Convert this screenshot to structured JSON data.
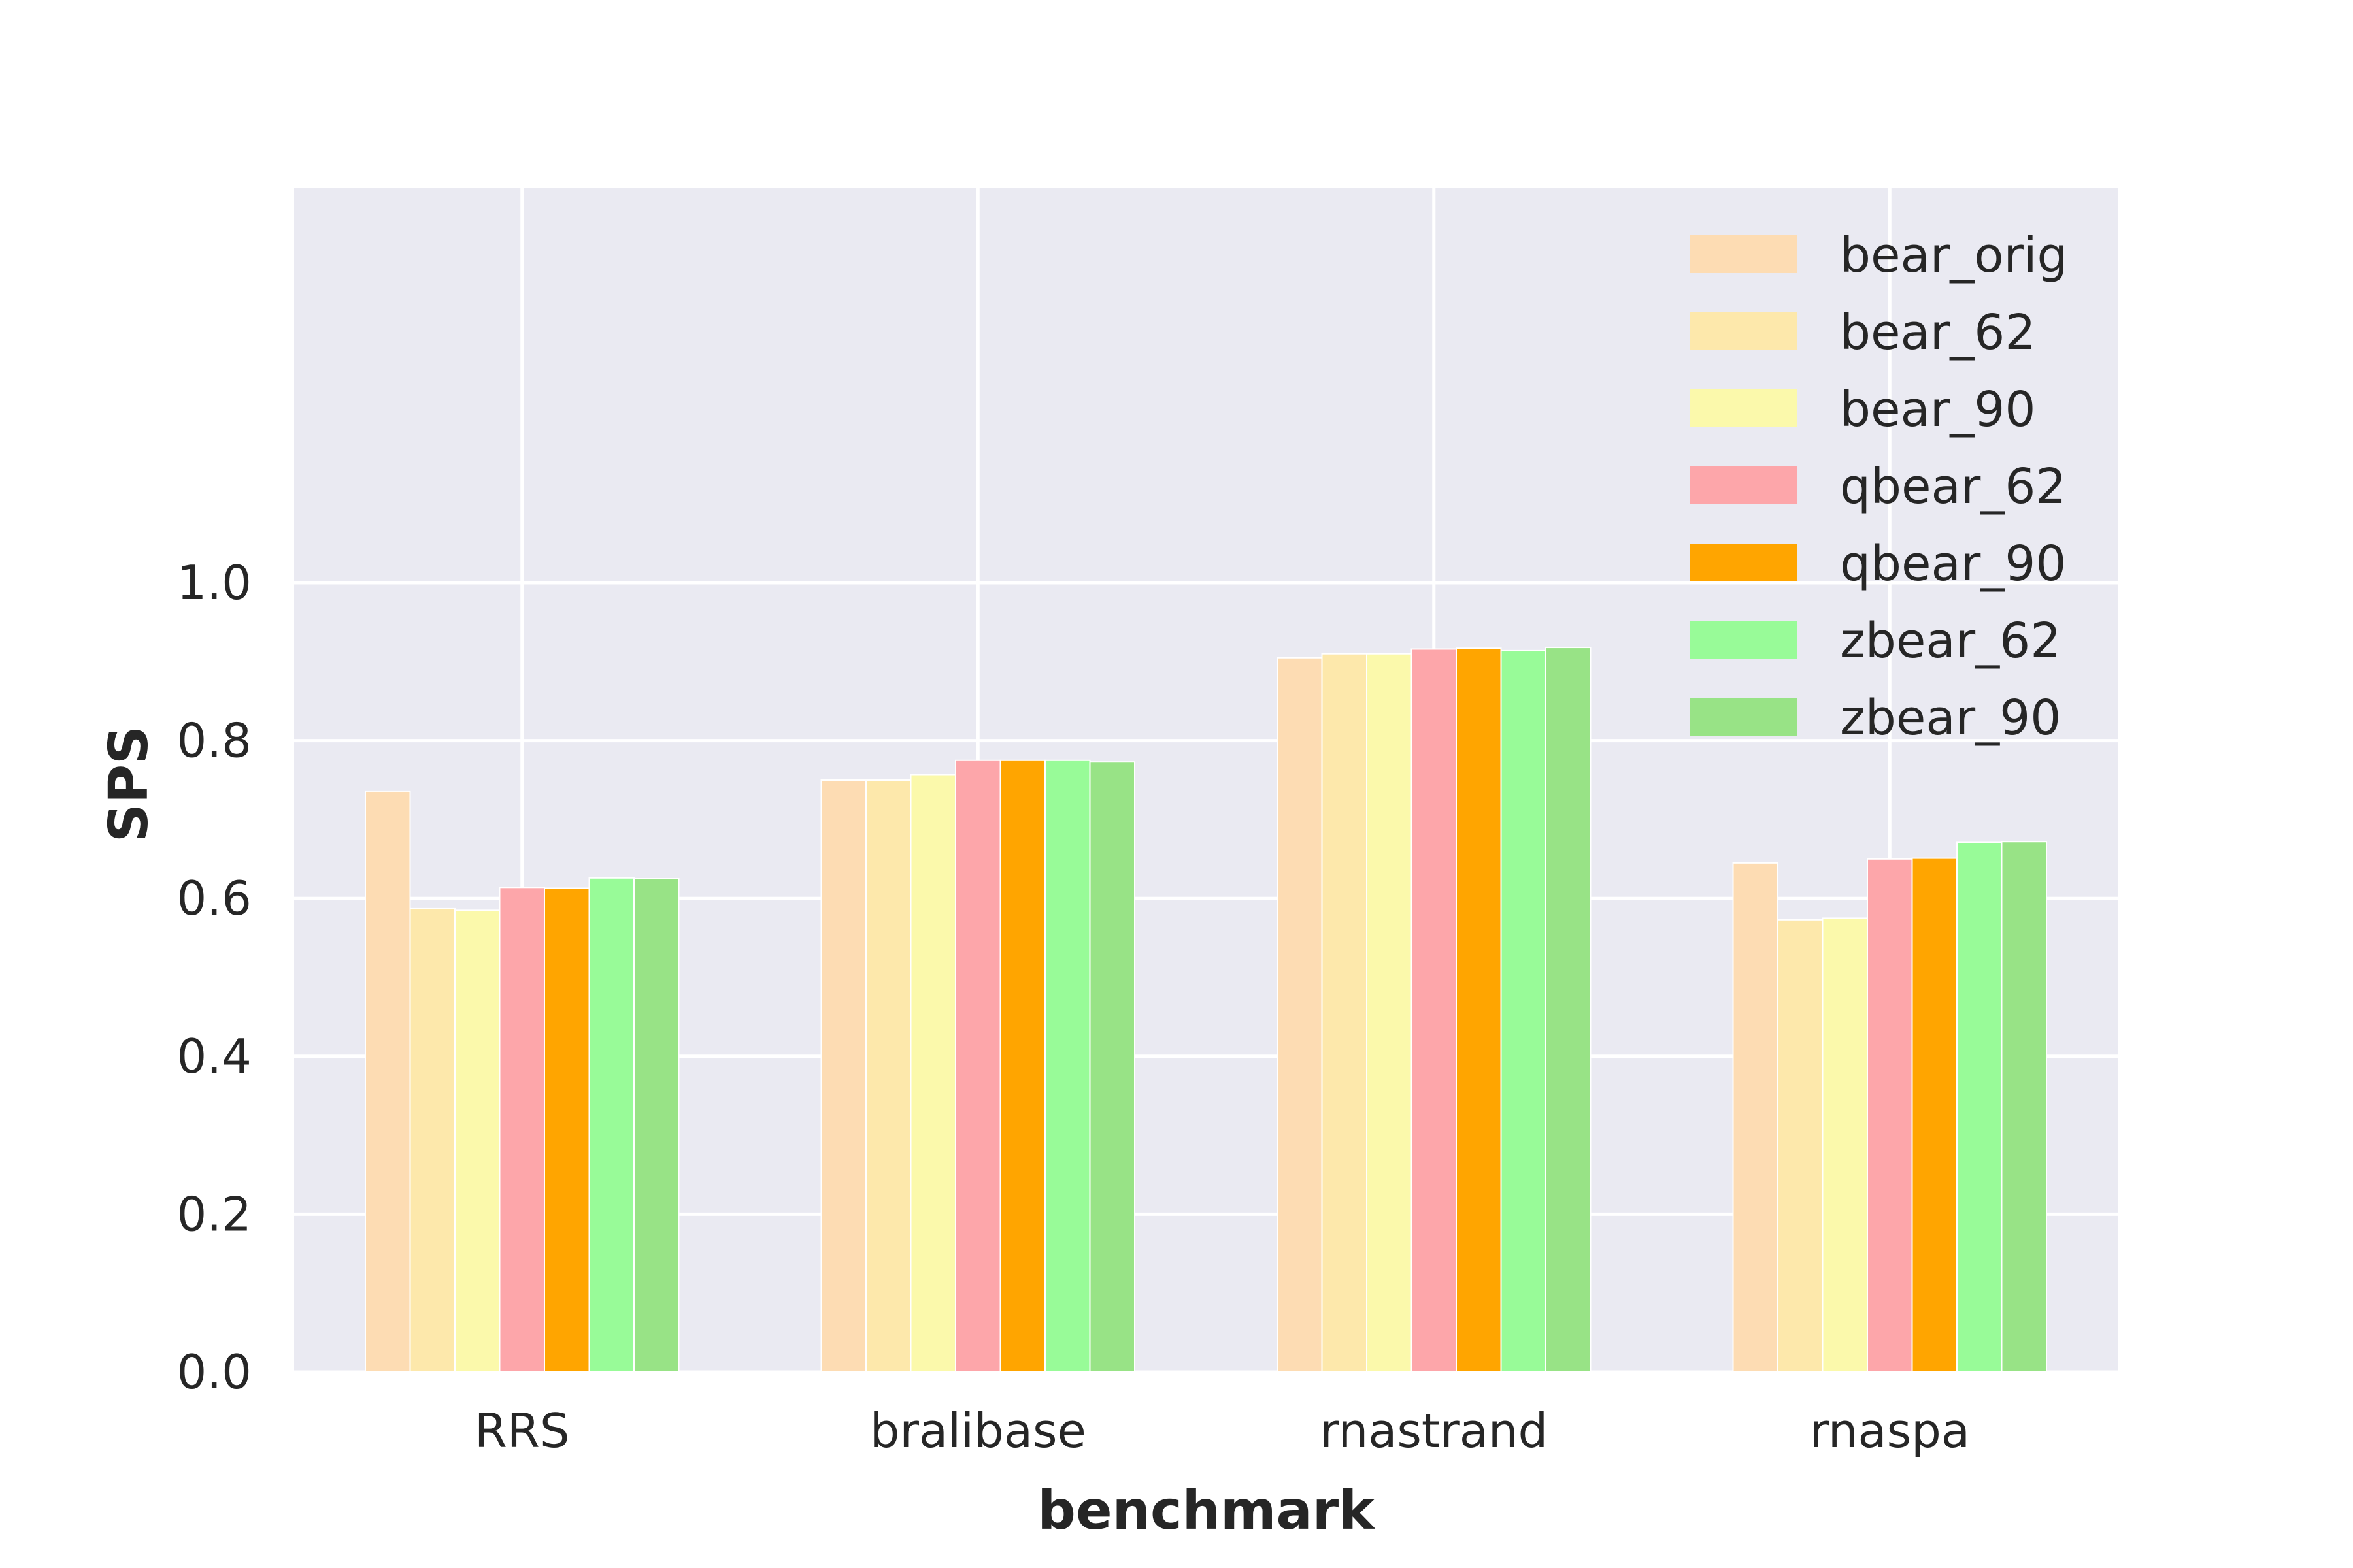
{
  "chart_data": {
    "type": "bar",
    "xlabel": "benchmark",
    "ylabel": "SPS",
    "ylim": [
      0.0,
      1.5
    ],
    "yticks": [
      "0.0",
      "0.2",
      "0.4",
      "0.6",
      "0.8",
      "1.0"
    ],
    "grid": true,
    "legend_position": "top-right",
    "background": "#eaeaf2",
    "categories": [
      "RRS",
      "bralibase",
      "rnastrand",
      "rnaspa"
    ],
    "series": [
      {
        "name": "bear_orig",
        "color": "#fddcb3",
        "values": [
          0.736,
          0.75,
          0.905,
          0.645
        ]
      },
      {
        "name": "bear_62",
        "color": "#fde8ab",
        "values": [
          0.587,
          0.75,
          0.91,
          0.573
        ]
      },
      {
        "name": "bear_90",
        "color": "#fbf9ab",
        "values": [
          0.585,
          0.757,
          0.91,
          0.575
        ]
      },
      {
        "name": "qbear_62",
        "color": "#fda6aa",
        "values": [
          0.614,
          0.775,
          0.916,
          0.65
        ]
      },
      {
        "name": "qbear_90",
        "color": "#ffa500",
        "values": [
          0.613,
          0.775,
          0.917,
          0.651
        ]
      },
      {
        "name": "zbear_62",
        "color": "#98fb98",
        "values": [
          0.626,
          0.775,
          0.914,
          0.671
        ]
      },
      {
        "name": "zbear_90",
        "color": "#98e386",
        "values": [
          0.625,
          0.773,
          0.918,
          0.672
        ]
      }
    ]
  }
}
